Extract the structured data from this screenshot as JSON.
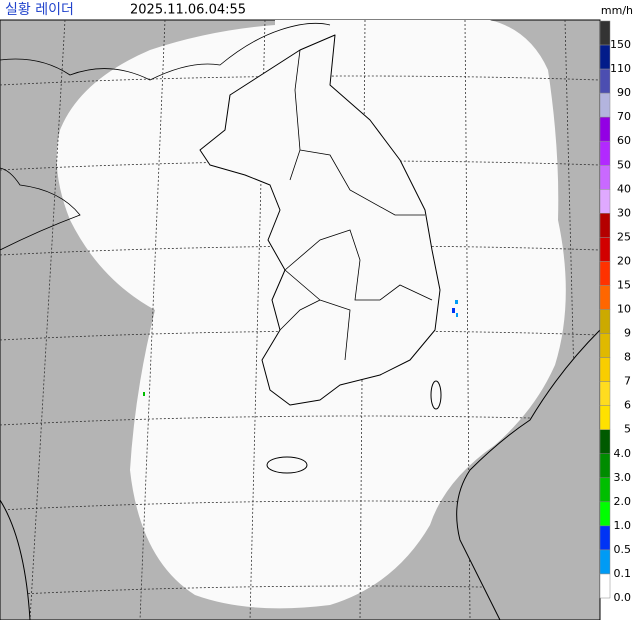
{
  "header": {
    "title": "실황 레이더",
    "timestamp": "2025.11.06.04:55",
    "unit": "mm/h"
  },
  "legend": [
    {
      "label": "150",
      "color": "#333333"
    },
    {
      "label": "110",
      "color": "#021c8a"
    },
    {
      "label": "90",
      "color": "#4c4eb1"
    },
    {
      "label": "70",
      "color": "#b3b4de"
    },
    {
      "label": "60",
      "color": "#9300e4"
    },
    {
      "label": "50",
      "color": "#b229ff"
    },
    {
      "label": "40",
      "color": "#c969ff"
    },
    {
      "label": "30",
      "color": "#dfa9ff"
    },
    {
      "label": "25",
      "color": "#b40000"
    },
    {
      "label": "20",
      "color": "#d20000"
    },
    {
      "label": "15",
      "color": "#ff3200"
    },
    {
      "label": "10",
      "color": "#ff6600"
    },
    {
      "label": "9",
      "color": "#ccaa00"
    },
    {
      "label": "8",
      "color": "#e0b900"
    },
    {
      "label": "7",
      "color": "#f9cd00"
    },
    {
      "label": "6",
      "color": "#ffdc1f"
    },
    {
      "label": "5",
      "color": "#ffe100"
    },
    {
      "label": "4.0",
      "color": "#005a00"
    },
    {
      "label": "3.0",
      "color": "#008c00"
    },
    {
      "label": "2.0",
      "color": "#00be00"
    },
    {
      "label": "1.0",
      "color": "#00ff00"
    },
    {
      "label": "0.5",
      "color": "#0033f5"
    },
    {
      "label": "0.1",
      "color": "#009bf5"
    },
    {
      "label": "0.0",
      "color": "#ffffff"
    }
  ]
}
